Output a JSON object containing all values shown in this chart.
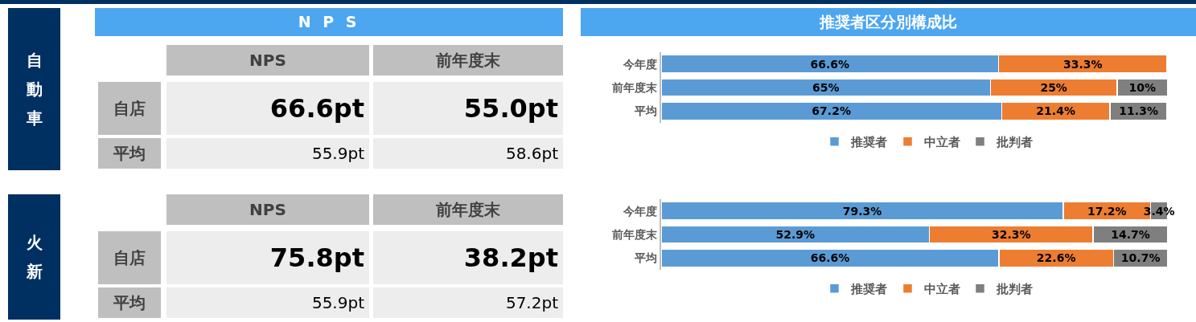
{
  "chart_data": [
    {
      "type": "other",
      "title": "N P S",
      "annotations": [
        "自動車",
        "NPS",
        "前年度末",
        "自店",
        "66.6pt",
        "55.0pt",
        "平均",
        "55.9pt",
        "58.6pt"
      ]
    },
    {
      "type": "bar",
      "title": "推奨者区分別構成比",
      "orientation": "horizontal",
      "stacked": true,
      "categories": [
        "今年度",
        "前年度末",
        "平均"
      ],
      "series": [
        {
          "name": "推奨者",
          "color": "#5b9bd5",
          "values": [
            66.6,
            65,
            67.2
          ],
          "value_labels": [
            "66.6%",
            "65%",
            "67.2%"
          ]
        },
        {
          "name": "中立者",
          "color": "#ed7d31",
          "values": [
            33.3,
            25,
            21.4
          ],
          "value_labels": [
            "33.3%",
            "25%",
            "21.4%"
          ]
        },
        {
          "name": "批判者",
          "color": "#7f7f7f",
          "values": [
            null,
            10,
            11.3
          ],
          "value_labels": [
            null,
            "10%",
            "11.3%"
          ]
        }
      ],
      "tick_labels": "y",
      "legend": "bottom",
      "grid": false
    },
    {
      "type": "other",
      "annotations": [
        "火新",
        "NPS",
        "前年度末",
        "自店",
        "75.8pt",
        "38.2pt",
        "平均",
        "55.9pt",
        "57.2pt"
      ]
    },
    {
      "type": "bar",
      "orientation": "horizontal",
      "stacked": true,
      "categories": [
        "今年度",
        "前年度末",
        "平均"
      ],
      "series": [
        {
          "name": "推奨者",
          "color": "#5b9bd5",
          "values": [
            79.3,
            52.9,
            66.6
          ],
          "value_labels": [
            "79.3%",
            "52.9%",
            "66.6%"
          ]
        },
        {
          "name": "中立者",
          "color": "#ed7d31",
          "values": [
            17.2,
            32.3,
            22.6
          ],
          "value_labels": [
            "17.2%",
            "32.3%",
            "22.6%"
          ]
        },
        {
          "name": "批判者",
          "color": "#7f7f7f",
          "values": [
            3.4,
            14.7,
            10.7
          ],
          "value_labels": [
            "3.4%",
            "14.7%",
            "10.7%"
          ]
        }
      ],
      "tick_labels": "y",
      "legend": "bottom",
      "grid": false
    }
  ]
}
